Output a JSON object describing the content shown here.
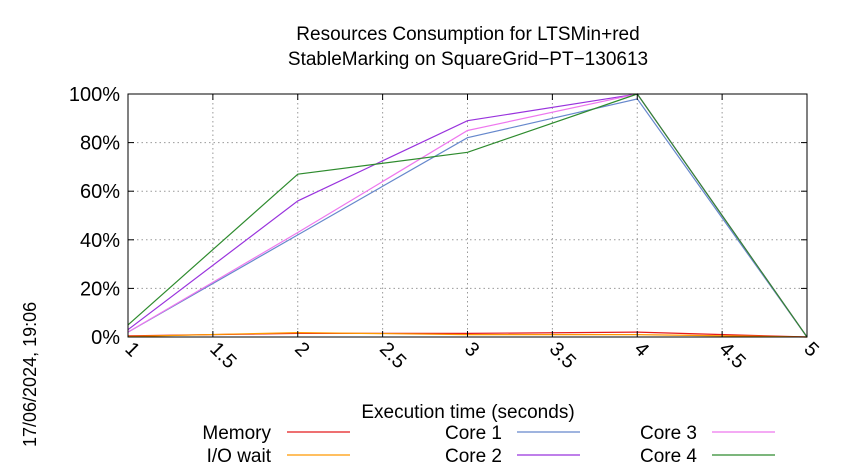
{
  "chart_data": {
    "type": "line",
    "title": [
      "Resources Consumption for LTSMin+red",
      "StableMarking on SquareGrid−PT−130613"
    ],
    "xlabel": "Execution time (seconds)",
    "ylabel": "",
    "xlim": [
      1,
      5
    ],
    "ylim": [
      0,
      100
    ],
    "xticks": [
      1,
      1.5,
      2,
      2.5,
      3,
      3.5,
      4,
      4.5,
      5
    ],
    "xtick_labels": [
      "1",
      "1.5",
      "2",
      "2.5",
      "3",
      "3.5",
      "4",
      "4.5",
      "5"
    ],
    "yticks": [
      0,
      20,
      40,
      60,
      80,
      100
    ],
    "ytick_labels": [
      "0%",
      "20%",
      "40%",
      "60%",
      "80%",
      "100%"
    ],
    "grid": true,
    "legend_position": "bottom",
    "timestamp": "17/06/2024, 19:06",
    "series": [
      {
        "name": "Memory",
        "color": "#e41a1c",
        "x": [
          1,
          2,
          3,
          4,
          5
        ],
        "y": [
          0.5,
          1.5,
          1.5,
          2,
          0
        ]
      },
      {
        "name": "I/O wait",
        "color": "#ff9900",
        "x": [
          1,
          2,
          3,
          4,
          5
        ],
        "y": [
          0.2,
          1.8,
          1,
          1,
          0
        ]
      },
      {
        "name": "Core 1",
        "color": "#6688cc",
        "x": [
          1,
          2,
          3,
          4,
          5
        ],
        "y": [
          2,
          42,
          82,
          98,
          0
        ]
      },
      {
        "name": "Core 2",
        "color": "#9933dd",
        "x": [
          1,
          2,
          3,
          4,
          5
        ],
        "y": [
          3,
          56,
          89,
          100,
          0
        ]
      },
      {
        "name": "Core 3",
        "color": "#ee77ee",
        "x": [
          1,
          2,
          3,
          4,
          5
        ],
        "y": [
          2,
          43,
          85,
          100,
          0
        ]
      },
      {
        "name": "Core 4",
        "color": "#2e8b2e",
        "x": [
          1,
          2,
          3,
          4,
          5
        ],
        "y": [
          5,
          67,
          76,
          100,
          0
        ]
      }
    ]
  }
}
